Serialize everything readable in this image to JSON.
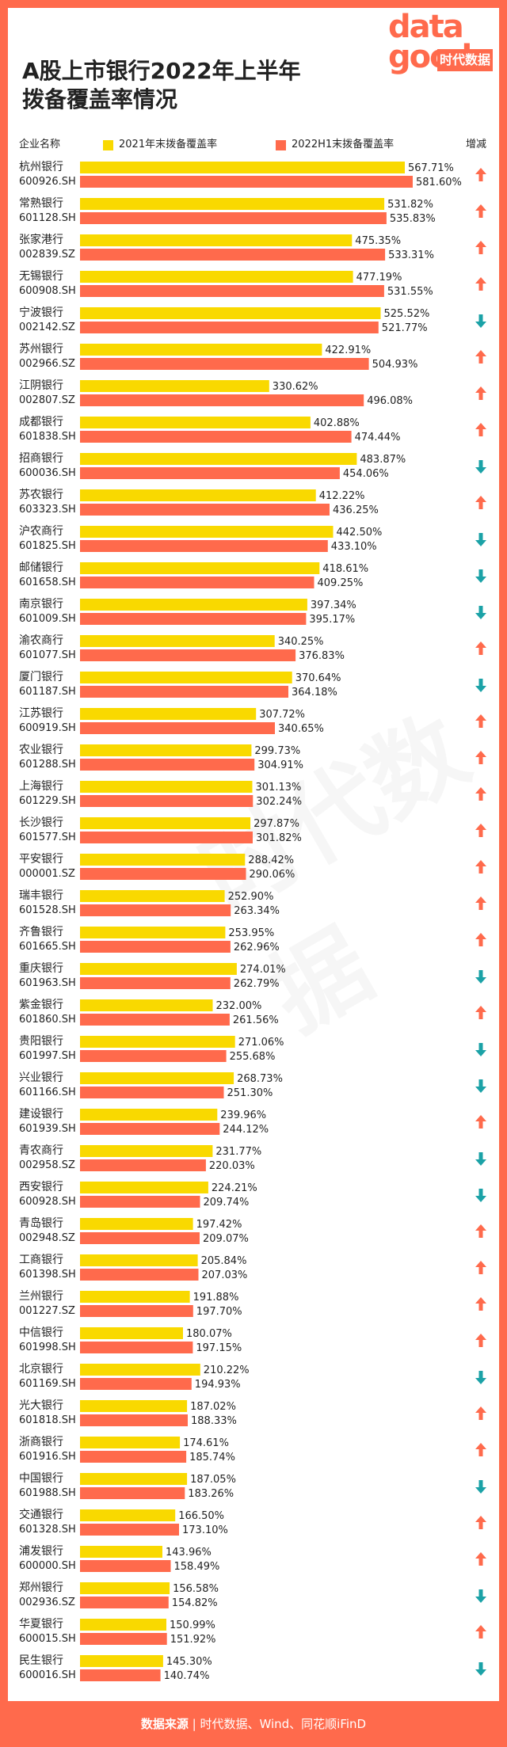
{
  "title_line1": "A股上市银行2022年上半年",
  "title_line2": "拨备覆盖率情况",
  "logo": {
    "text_top": "data",
    "text_bottom": "good",
    "text_cn": "时代数据"
  },
  "headers": {
    "company": "企业名称",
    "change": "增减"
  },
  "source_label": "数据来源",
  "source_text": "时代数据、Wind、同花顺iFinD",
  "colors": {
    "series_2021": "#f9d900",
    "series_2022h1": "#ff6a4c",
    "up": "#ff6a4c",
    "down": "#1ba2a7",
    "frame": "#ff6a4c"
  },
  "chart_data": {
    "type": "bar",
    "orientation": "horizontal",
    "series": [
      {
        "name": "2021年末拨备覆盖率",
        "unit": "%"
      },
      {
        "name": "2022H1末拨备覆盖率",
        "unit": "%"
      }
    ],
    "banks": [
      {
        "name": "杭州银行",
        "code": "600926.SH",
        "v2021": 567.71,
        "v2022": 581.6,
        "change": "up"
      },
      {
        "name": "常熟银行",
        "code": "601128.SH",
        "v2021": 531.82,
        "v2022": 535.83,
        "change": "up"
      },
      {
        "name": "张家港行",
        "code": "002839.SZ",
        "v2021": 475.35,
        "v2022": 533.31,
        "change": "up"
      },
      {
        "name": "无锡银行",
        "code": "600908.SH",
        "v2021": 477.19,
        "v2022": 531.55,
        "change": "up"
      },
      {
        "name": "宁波银行",
        "code": "002142.SZ",
        "v2021": 525.52,
        "v2022": 521.77,
        "change": "down"
      },
      {
        "name": "苏州银行",
        "code": "002966.SZ",
        "v2021": 422.91,
        "v2022": 504.93,
        "change": "up"
      },
      {
        "name": "江阴银行",
        "code": "002807.SZ",
        "v2021": 330.62,
        "v2022": 496.08,
        "change": "up"
      },
      {
        "name": "成都银行",
        "code": "601838.SH",
        "v2021": 402.88,
        "v2022": 474.44,
        "change": "up"
      },
      {
        "name": "招商银行",
        "code": "600036.SH",
        "v2021": 483.87,
        "v2022": 454.06,
        "change": "down"
      },
      {
        "name": "苏农银行",
        "code": "603323.SH",
        "v2021": 412.22,
        "v2022": 436.25,
        "change": "up"
      },
      {
        "name": "沪农商行",
        "code": "601825.SH",
        "v2021": 442.5,
        "v2022": 433.1,
        "change": "down"
      },
      {
        "name": "邮储银行",
        "code": "601658.SH",
        "v2021": 418.61,
        "v2022": 409.25,
        "change": "down"
      },
      {
        "name": "南京银行",
        "code": "601009.SH",
        "v2021": 397.34,
        "v2022": 395.17,
        "change": "down"
      },
      {
        "name": "渝农商行",
        "code": "601077.SH",
        "v2021": 340.25,
        "v2022": 376.83,
        "change": "up"
      },
      {
        "name": "厦门银行",
        "code": "601187.SH",
        "v2021": 370.64,
        "v2022": 364.18,
        "change": "down"
      },
      {
        "name": "江苏银行",
        "code": "600919.SH",
        "v2021": 307.72,
        "v2022": 340.65,
        "change": "up"
      },
      {
        "name": "农业银行",
        "code": "601288.SH",
        "v2021": 299.73,
        "v2022": 304.91,
        "change": "up"
      },
      {
        "name": "上海银行",
        "code": "601229.SH",
        "v2021": 301.13,
        "v2022": 302.24,
        "change": "up"
      },
      {
        "name": "长沙银行",
        "code": "601577.SH",
        "v2021": 297.87,
        "v2022": 301.82,
        "change": "up"
      },
      {
        "name": "平安银行",
        "code": "000001.SZ",
        "v2021": 288.42,
        "v2022": 290.06,
        "change": "up"
      },
      {
        "name": "瑞丰银行",
        "code": "601528.SH",
        "v2021": 252.9,
        "v2022": 263.34,
        "change": "up"
      },
      {
        "name": "齐鲁银行",
        "code": "601665.SH",
        "v2021": 253.95,
        "v2022": 262.96,
        "change": "up"
      },
      {
        "name": "重庆银行",
        "code": "601963.SH",
        "v2021": 274.01,
        "v2022": 262.79,
        "change": "down"
      },
      {
        "name": "紫金银行",
        "code": "601860.SH",
        "v2021": 232.0,
        "v2022": 261.56,
        "change": "up"
      },
      {
        "name": "贵阳银行",
        "code": "601997.SH",
        "v2021": 271.06,
        "v2022": 255.68,
        "change": "down"
      },
      {
        "name": "兴业银行",
        "code": "601166.SH",
        "v2021": 268.73,
        "v2022": 251.3,
        "change": "down"
      },
      {
        "name": "建设银行",
        "code": "601939.SH",
        "v2021": 239.96,
        "v2022": 244.12,
        "change": "up"
      },
      {
        "name": "青农商行",
        "code": "002958.SZ",
        "v2021": 231.77,
        "v2022": 220.03,
        "change": "down"
      },
      {
        "name": "西安银行",
        "code": "600928.SH",
        "v2021": 224.21,
        "v2022": 209.74,
        "change": "down"
      },
      {
        "name": "青岛银行",
        "code": "002948.SZ",
        "v2021": 197.42,
        "v2022": 209.07,
        "change": "up"
      },
      {
        "name": "工商银行",
        "code": "601398.SH",
        "v2021": 205.84,
        "v2022": 207.03,
        "change": "up"
      },
      {
        "name": "兰州银行",
        "code": "001227.SZ",
        "v2021": 191.88,
        "v2022": 197.7,
        "change": "up"
      },
      {
        "name": "中信银行",
        "code": "601998.SH",
        "v2021": 180.07,
        "v2022": 197.15,
        "change": "up"
      },
      {
        "name": "北京银行",
        "code": "601169.SH",
        "v2021": 210.22,
        "v2022": 194.93,
        "change": "down"
      },
      {
        "name": "光大银行",
        "code": "601818.SH",
        "v2021": 187.02,
        "v2022": 188.33,
        "change": "up"
      },
      {
        "name": "浙商银行",
        "code": "601916.SH",
        "v2021": 174.61,
        "v2022": 185.74,
        "change": "up"
      },
      {
        "name": "中国银行",
        "code": "601988.SH",
        "v2021": 187.05,
        "v2022": 183.26,
        "change": "down"
      },
      {
        "name": "交通银行",
        "code": "601328.SH",
        "v2021": 166.5,
        "v2022": 173.1,
        "change": "up"
      },
      {
        "name": "浦发银行",
        "code": "600000.SH",
        "v2021": 143.96,
        "v2022": 158.49,
        "change": "up"
      },
      {
        "name": "郑州银行",
        "code": "002936.SZ",
        "v2021": 156.58,
        "v2022": 154.82,
        "change": "down"
      },
      {
        "name": "华夏银行",
        "code": "600015.SH",
        "v2021": 150.99,
        "v2022": 151.92,
        "change": "up"
      },
      {
        "name": "民生银行",
        "code": "600016.SH",
        "v2021": 145.3,
        "v2022": 140.74,
        "change": "down"
      }
    ]
  }
}
